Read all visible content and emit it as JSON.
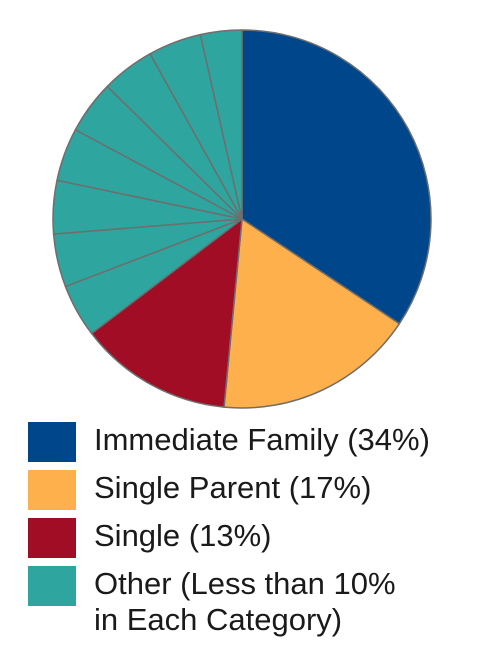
{
  "chart_data": {
    "type": "pie",
    "title": "",
    "categories": [
      "Immediate Family",
      "Single Parent",
      "Single",
      "Other (Less than 10% in Each Category)"
    ],
    "values": [
      34,
      17,
      13,
      36
    ],
    "other_breakdown": [
      4.5,
      4.5,
      4.5,
      4.5,
      4.5,
      4.5,
      4.5,
      3.5
    ],
    "start_angle_deg": 0,
    "direction": "clockwise",
    "colors": {
      "immediate_family": "#00468b",
      "single_parent": "#fdb04b",
      "single": "#a10d24",
      "other": "#2fa59f",
      "slice_border": "#6e6e6e"
    },
    "legend": {
      "position": "bottom",
      "items": [
        {
          "label": "Immediate Family (34%)",
          "color": "#00468b"
        },
        {
          "label": "Single Parent (17%)",
          "color": "#fdb04b"
        },
        {
          "label": "Single (13%)",
          "color": "#a10d24"
        },
        {
          "label": "Other (Less than 10%\nin Each Category)",
          "color": "#2fa59f"
        }
      ]
    }
  }
}
